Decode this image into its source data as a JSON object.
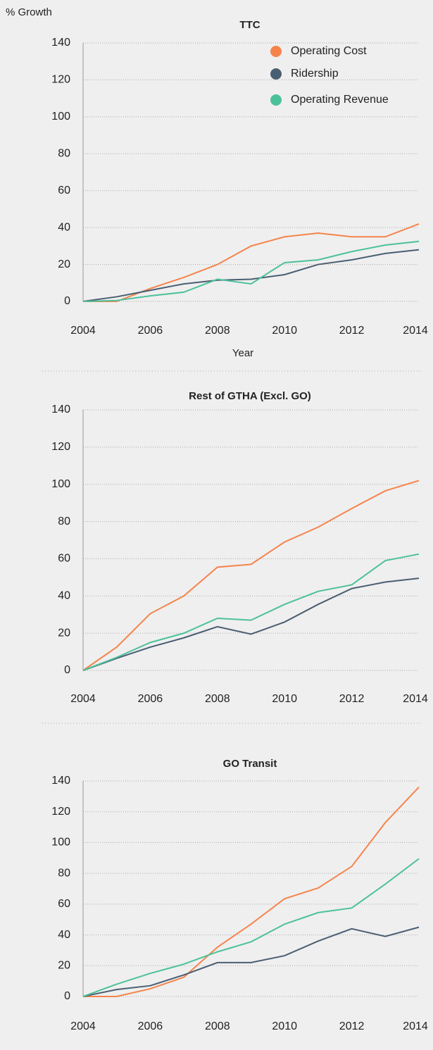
{
  "chart_data": [
    {
      "type": "line",
      "title": "TTC",
      "y_label": "% Growth",
      "x_label": "Year",
      "x": [
        2004,
        2005,
        2006,
        2007,
        2008,
        2009,
        2010,
        2011,
        2012,
        2013,
        2014
      ],
      "xlim": [
        2004,
        2014
      ],
      "xticks": [
        2004,
        2006,
        2008,
        2010,
        2012,
        2014
      ],
      "ylim": [
        0,
        140
      ],
      "yticks": [
        0,
        20,
        40,
        60,
        80,
        100,
        120,
        140
      ],
      "grid": true,
      "legend": "upper right",
      "series": [
        {
          "name": "Operating Cost",
          "color": "#f5844c",
          "values": [
            0,
            0,
            7,
            13,
            20,
            30,
            35,
            37,
            35,
            35,
            42
          ]
        },
        {
          "name": "Ridership",
          "color": "#4a5e72",
          "values": [
            0,
            2.5,
            6,
            9.5,
            11.5,
            12,
            14.5,
            20,
            22.5,
            26,
            28
          ]
        },
        {
          "name": "Operating Revenue",
          "color": "#4cc19a",
          "values": [
            0,
            0.5,
            3,
            5,
            12,
            9.5,
            21,
            22.5,
            27,
            30.5,
            32.5
          ]
        }
      ]
    },
    {
      "type": "line",
      "title": "Rest of GTHA  (Excl. GO)",
      "x": [
        2004,
        2005,
        2006,
        2007,
        2008,
        2009,
        2010,
        2011,
        2012,
        2013,
        2014
      ],
      "xlim": [
        2004,
        2014
      ],
      "xticks": [
        2004,
        2006,
        2008,
        2010,
        2012,
        2014
      ],
      "ylim": [
        0,
        140
      ],
      "yticks": [
        0,
        20,
        40,
        60,
        80,
        100,
        120,
        140
      ],
      "grid": true,
      "series": [
        {
          "name": "Operating Cost",
          "color": "#f5844c",
          "values": [
            0,
            12.5,
            30.5,
            40,
            55.5,
            57,
            69,
            77,
            87,
            96.5,
            102
          ]
        },
        {
          "name": "Ridership",
          "color": "#4a5e72",
          "values": [
            0,
            6.5,
            12.5,
            17.5,
            23.5,
            19.5,
            26,
            35.5,
            44,
            47.5,
            49.5
          ]
        },
        {
          "name": "Operating Revenue",
          "color": "#4cc19a",
          "values": [
            0,
            7,
            15,
            20,
            28,
            27,
            35.5,
            42.5,
            46,
            59,
            62.5
          ]
        }
      ]
    },
    {
      "type": "line",
      "title": "GO Transit",
      "x": [
        2004,
        2005,
        2006,
        2007,
        2008,
        2009,
        2010,
        2011,
        2012,
        2013,
        2014
      ],
      "xlim": [
        2004,
        2014
      ],
      "xticks": [
        2004,
        2006,
        2008,
        2010,
        2012,
        2014
      ],
      "ylim": [
        0,
        140
      ],
      "yticks": [
        0,
        20,
        40,
        60,
        80,
        100,
        120,
        140
      ],
      "grid": true,
      "series": [
        {
          "name": "Operating Cost",
          "color": "#f5844c",
          "values": [
            0,
            0,
            5,
            12.5,
            32,
            47,
            63.5,
            70.5,
            84.5,
            113,
            136
          ]
        },
        {
          "name": "Ridership",
          "color": "#4a5e72",
          "values": [
            0,
            4.5,
            7,
            14,
            22,
            22,
            26.5,
            36,
            44,
            39,
            45
          ]
        },
        {
          "name": "Operating Revenue",
          "color": "#4cc19a",
          "values": [
            0,
            8,
            15,
            21,
            29,
            35.5,
            47,
            54.5,
            57.5,
            73,
            89.5
          ]
        }
      ]
    }
  ]
}
